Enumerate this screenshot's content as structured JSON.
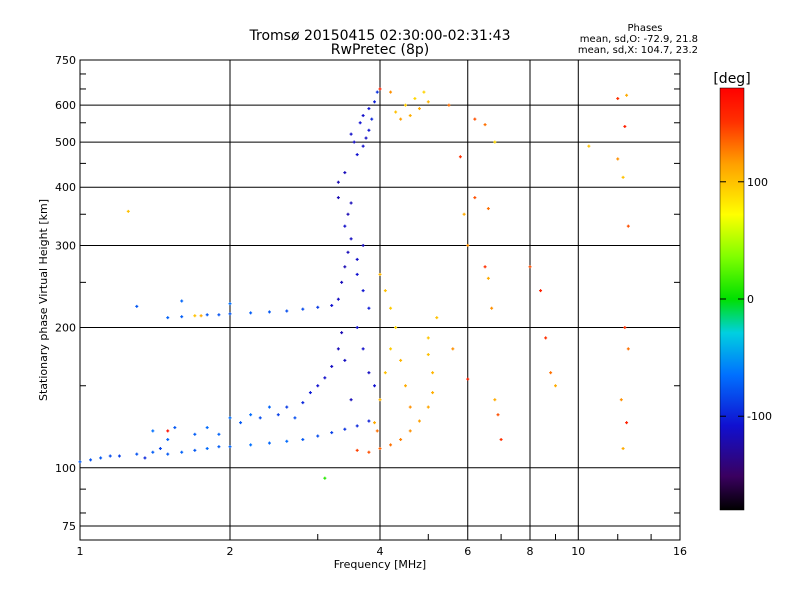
{
  "chart_data": {
    "type": "scatter",
    "title": "Tromsø 20150415 02:30:00-02:31:43",
    "subtitle": "RwPretec (8p)",
    "xlabel": "Frequency [MHz]",
    "ylabel": "Stationary phase Virtual Height [km]",
    "x_scale": "log",
    "y_scale": "log",
    "xlim": [
      1,
      16
    ],
    "ylim": [
      70,
      750
    ],
    "x_ticks": [
      "1",
      "2",
      "4",
      "6",
      "8",
      "10",
      "16"
    ],
    "y_ticks": [
      "75",
      "100",
      "200",
      "300",
      "400",
      "500",
      "600",
      "750"
    ],
    "grid": true,
    "color_variable": "Phase [deg]",
    "phase_stats": {
      "heading": "Phases",
      "o_line": "mean, sd,O: -72.9, 21.8",
      "x_line": "mean, sd,X: 104.7, 23.2"
    },
    "colorbar": {
      "label": "[deg]",
      "range": [
        -180,
        180
      ],
      "ticks": [
        "100",
        "0",
        "-100"
      ]
    },
    "series": [
      {
        "name": "",
        "note": "",
        "points": [
          {
            "x": 1.0,
            "y": 103,
            "phase": -78
          },
          {
            "x": 1.05,
            "y": 104,
            "phase": -82
          },
          {
            "x": 1.1,
            "y": 105,
            "phase": -80
          },
          {
            "x": 1.15,
            "y": 106,
            "phase": -85
          },
          {
            "x": 1.2,
            "y": 106,
            "phase": -90
          },
          {
            "x": 1.3,
            "y": 107,
            "phase": -82
          },
          {
            "x": 1.35,
            "y": 105,
            "phase": -100
          },
          {
            "x": 1.4,
            "y": 108,
            "phase": -78
          },
          {
            "x": 1.45,
            "y": 110,
            "phase": -88
          },
          {
            "x": 1.5,
            "y": 107,
            "phase": -80
          },
          {
            "x": 1.6,
            "y": 108,
            "phase": -76
          },
          {
            "x": 1.7,
            "y": 109,
            "phase": -80
          },
          {
            "x": 1.8,
            "y": 110,
            "phase": -72
          },
          {
            "x": 1.9,
            "y": 111,
            "phase": -78
          },
          {
            "x": 2.0,
            "y": 111,
            "phase": -75
          },
          {
            "x": 2.2,
            "y": 112,
            "phase": -70
          },
          {
            "x": 2.4,
            "y": 113,
            "phase": -74
          },
          {
            "x": 2.6,
            "y": 114,
            "phase": -72
          },
          {
            "x": 2.8,
            "y": 115,
            "phase": -80
          },
          {
            "x": 3.0,
            "y": 117,
            "phase": -85
          },
          {
            "x": 3.2,
            "y": 119,
            "phase": -90
          },
          {
            "x": 3.4,
            "y": 121,
            "phase": -96
          },
          {
            "x": 3.6,
            "y": 123,
            "phase": -100
          },
          {
            "x": 3.8,
            "y": 126,
            "phase": -104
          },
          {
            "x": 1.4,
            "y": 120,
            "phase": -70
          },
          {
            "x": 1.5,
            "y": 115,
            "phase": -75
          },
          {
            "x": 1.55,
            "y": 122,
            "phase": -80
          },
          {
            "x": 1.7,
            "y": 118,
            "phase": -78
          },
          {
            "x": 1.8,
            "y": 122,
            "phase": -72
          },
          {
            "x": 1.9,
            "y": 118,
            "phase": -75
          },
          {
            "x": 2.1,
            "y": 125,
            "phase": -80
          },
          {
            "x": 2.3,
            "y": 128,
            "phase": -85
          },
          {
            "x": 2.5,
            "y": 130,
            "phase": -90
          },
          {
            "x": 2.7,
            "y": 128,
            "phase": -84
          },
          {
            "x": 2.6,
            "y": 135,
            "phase": -92
          },
          {
            "x": 2.8,
            "y": 138,
            "phase": -100
          },
          {
            "x": 2.9,
            "y": 145,
            "phase": -105
          },
          {
            "x": 3.0,
            "y": 150,
            "phase": -110
          },
          {
            "x": 3.1,
            "y": 156,
            "phase": -112
          },
          {
            "x": 3.2,
            "y": 165,
            "phase": -115
          },
          {
            "x": 3.3,
            "y": 180,
            "phase": -118
          },
          {
            "x": 3.35,
            "y": 195,
            "phase": -120
          },
          {
            "x": 2.4,
            "y": 135,
            "phase": -75
          },
          {
            "x": 2.2,
            "y": 130,
            "phase": -72
          },
          {
            "x": 2.0,
            "y": 128,
            "phase": -70
          },
          {
            "x": 1.5,
            "y": 210,
            "phase": -76
          },
          {
            "x": 1.6,
            "y": 211,
            "phase": -78
          },
          {
            "x": 1.7,
            "y": 212,
            "phase": 100
          },
          {
            "x": 1.75,
            "y": 212,
            "phase": 110
          },
          {
            "x": 1.8,
            "y": 213,
            "phase": -80
          },
          {
            "x": 1.9,
            "y": 213,
            "phase": -82
          },
          {
            "x": 2.0,
            "y": 214,
            "phase": -80
          },
          {
            "x": 2.2,
            "y": 215,
            "phase": -78
          },
          {
            "x": 2.4,
            "y": 216,
            "phase": -80
          },
          {
            "x": 2.6,
            "y": 217,
            "phase": -84
          },
          {
            "x": 2.8,
            "y": 219,
            "phase": -86
          },
          {
            "x": 3.0,
            "y": 221,
            "phase": -92
          },
          {
            "x": 3.2,
            "y": 223,
            "phase": -110
          },
          {
            "x": 1.3,
            "y": 222,
            "phase": -80
          },
          {
            "x": 1.6,
            "y": 228,
            "phase": -74
          },
          {
            "x": 2.0,
            "y": 225,
            "phase": -70
          },
          {
            "x": 3.3,
            "y": 230,
            "phase": -115
          },
          {
            "x": 3.35,
            "y": 250,
            "phase": -118
          },
          {
            "x": 3.4,
            "y": 270,
            "phase": -120
          },
          {
            "x": 3.45,
            "y": 290,
            "phase": -118
          },
          {
            "x": 3.5,
            "y": 310,
            "phase": -115
          },
          {
            "x": 3.4,
            "y": 330,
            "phase": -112
          },
          {
            "x": 3.45,
            "y": 350,
            "phase": -120
          },
          {
            "x": 3.5,
            "y": 370,
            "phase": -118
          },
          {
            "x": 3.6,
            "y": 260,
            "phase": -110
          },
          {
            "x": 3.7,
            "y": 240,
            "phase": -108
          },
          {
            "x": 3.8,
            "y": 220,
            "phase": -105
          },
          {
            "x": 3.6,
            "y": 200,
            "phase": -110
          },
          {
            "x": 3.7,
            "y": 180,
            "phase": -112
          },
          {
            "x": 3.8,
            "y": 160,
            "phase": -115
          },
          {
            "x": 3.9,
            "y": 150,
            "phase": -110
          },
          {
            "x": 3.5,
            "y": 140,
            "phase": -118
          },
          {
            "x": 3.4,
            "y": 170,
            "phase": -115
          },
          {
            "x": 3.6,
            "y": 280,
            "phase": -112
          },
          {
            "x": 3.7,
            "y": 300,
            "phase": -118
          },
          {
            "x": 3.3,
            "y": 380,
            "phase": -120
          },
          {
            "x": 3.6,
            "y": 470,
            "phase": -110
          },
          {
            "x": 3.7,
            "y": 490,
            "phase": -112
          },
          {
            "x": 3.75,
            "y": 510,
            "phase": -114
          },
          {
            "x": 3.8,
            "y": 530,
            "phase": -108
          },
          {
            "x": 3.65,
            "y": 550,
            "phase": -110
          },
          {
            "x": 3.7,
            "y": 570,
            "phase": -112
          },
          {
            "x": 3.8,
            "y": 590,
            "phase": -108
          },
          {
            "x": 3.9,
            "y": 610,
            "phase": -104
          },
          {
            "x": 3.55,
            "y": 500,
            "phase": -115
          },
          {
            "x": 3.5,
            "y": 520,
            "phase": -112
          },
          {
            "x": 3.85,
            "y": 560,
            "phase": -100
          },
          {
            "x": 3.95,
            "y": 640,
            "phase": -96
          },
          {
            "x": 3.4,
            "y": 430,
            "phase": -118
          },
          {
            "x": 3.3,
            "y": 410,
            "phase": -120
          }
        ]
      },
      {
        "name": "",
        "note": "",
        "points": [
          {
            "x": 3.8,
            "y": 108,
            "phase": 140
          },
          {
            "x": 4.0,
            "y": 110,
            "phase": 135
          },
          {
            "x": 4.2,
            "y": 112,
            "phase": 130
          },
          {
            "x": 4.4,
            "y": 115,
            "phase": 125
          },
          {
            "x": 4.6,
            "y": 120,
            "phase": 120
          },
          {
            "x": 4.8,
            "y": 126,
            "phase": 115
          },
          {
            "x": 5.0,
            "y": 135,
            "phase": 112
          },
          {
            "x": 5.1,
            "y": 145,
            "phase": 108
          },
          {
            "x": 5.1,
            "y": 160,
            "phase": 105
          },
          {
            "x": 5.0,
            "y": 175,
            "phase": 100
          },
          {
            "x": 5.0,
            "y": 190,
            "phase": 98
          },
          {
            "x": 3.6,
            "y": 109,
            "phase": 145
          },
          {
            "x": 3.9,
            "y": 125,
            "phase": 110
          },
          {
            "x": 4.0,
            "y": 140,
            "phase": 105
          },
          {
            "x": 4.1,
            "y": 160,
            "phase": 100
          },
          {
            "x": 4.2,
            "y": 180,
            "phase": 95
          },
          {
            "x": 4.3,
            "y": 200,
            "phase": 90
          },
          {
            "x": 4.2,
            "y": 220,
            "phase": 95
          },
          {
            "x": 4.1,
            "y": 240,
            "phase": 100
          },
          {
            "x": 4.0,
            "y": 260,
            "phase": 105
          },
          {
            "x": 4.5,
            "y": 150,
            "phase": 110
          },
          {
            "x": 4.4,
            "y": 170,
            "phase": 105
          },
          {
            "x": 4.6,
            "y": 135,
            "phase": 120
          },
          {
            "x": 3.95,
            "y": 120,
            "phase": 130
          },
          {
            "x": 4.3,
            "y": 580,
            "phase": 100
          },
          {
            "x": 4.5,
            "y": 600,
            "phase": 95
          },
          {
            "x": 4.7,
            "y": 620,
            "phase": 90
          },
          {
            "x": 4.9,
            "y": 640,
            "phase": 92
          },
          {
            "x": 5.0,
            "y": 610,
            "phase": 105
          },
          {
            "x": 4.8,
            "y": 590,
            "phase": 110
          },
          {
            "x": 4.4,
            "y": 560,
            "phase": 115
          },
          {
            "x": 4.6,
            "y": 570,
            "phase": 108
          },
          {
            "x": 4.2,
            "y": 640,
            "phase": 120
          },
          {
            "x": 4.0,
            "y": 650,
            "phase": 160
          },
          {
            "x": 5.5,
            "y": 600,
            "phase": 130
          },
          {
            "x": 5.8,
            "y": 465,
            "phase": 150
          },
          {
            "x": 6.2,
            "y": 560,
            "phase": 140
          },
          {
            "x": 6.5,
            "y": 545,
            "phase": 130
          },
          {
            "x": 6.8,
            "y": 500,
            "phase": 90
          },
          {
            "x": 6.0,
            "y": 300,
            "phase": 120
          },
          {
            "x": 5.9,
            "y": 350,
            "phase": 110
          },
          {
            "x": 6.2,
            "y": 380,
            "phase": 140
          },
          {
            "x": 6.6,
            "y": 360,
            "phase": 130
          },
          {
            "x": 6.5,
            "y": 270,
            "phase": 150
          },
          {
            "x": 6.6,
            "y": 255,
            "phase": 110
          },
          {
            "x": 6.7,
            "y": 220,
            "phase": 120
          },
          {
            "x": 5.2,
            "y": 210,
            "phase": 100
          },
          {
            "x": 5.6,
            "y": 180,
            "phase": 120
          },
          {
            "x": 6.0,
            "y": 155,
            "phase": 160
          },
          {
            "x": 6.9,
            "y": 130,
            "phase": 140
          },
          {
            "x": 7.0,
            "y": 115,
            "phase": 150
          },
          {
            "x": 6.8,
            "y": 140,
            "phase": 110
          },
          {
            "x": 8.0,
            "y": 270,
            "phase": 140
          },
          {
            "x": 8.4,
            "y": 240,
            "phase": 160
          },
          {
            "x": 8.6,
            "y": 190,
            "phase": 150
          },
          {
            "x": 8.8,
            "y": 160,
            "phase": 130
          },
          {
            "x": 9.0,
            "y": 150,
            "phase": 110
          },
          {
            "x": 12.0,
            "y": 620,
            "phase": 150
          },
          {
            "x": 12.5,
            "y": 630,
            "phase": 110
          },
          {
            "x": 12.4,
            "y": 540,
            "phase": 160
          },
          {
            "x": 12.0,
            "y": 460,
            "phase": 120
          },
          {
            "x": 12.3,
            "y": 420,
            "phase": 100
          },
          {
            "x": 12.6,
            "y": 330,
            "phase": 140
          },
          {
            "x": 12.4,
            "y": 200,
            "phase": 150
          },
          {
            "x": 12.6,
            "y": 180,
            "phase": 130
          },
          {
            "x": 12.2,
            "y": 140,
            "phase": 120
          },
          {
            "x": 12.5,
            "y": 125,
            "phase": 160
          },
          {
            "x": 12.3,
            "y": 110,
            "phase": 110
          },
          {
            "x": 10.5,
            "y": 490,
            "phase": 100
          },
          {
            "x": 1.25,
            "y": 355,
            "phase": 100
          },
          {
            "x": 3.1,
            "y": 95,
            "phase": 10
          },
          {
            "x": 1.5,
            "y": 120,
            "phase": 170
          }
        ]
      }
    ]
  }
}
